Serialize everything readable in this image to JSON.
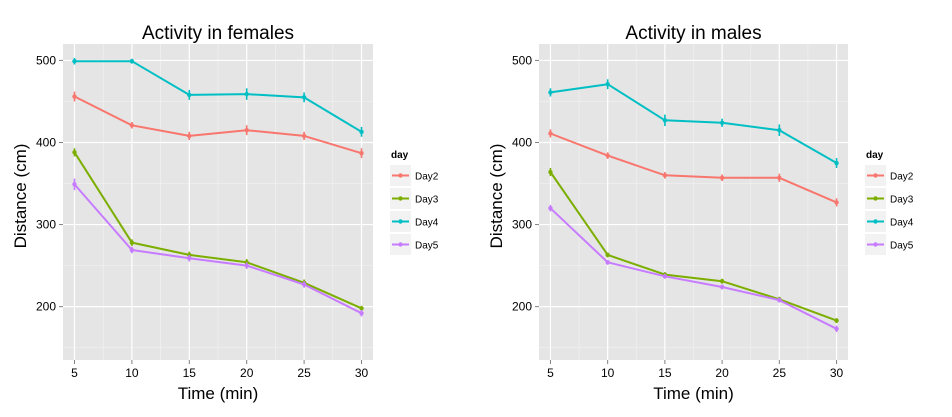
{
  "chart_data": [
    {
      "type": "line",
      "title": "Activity in females",
      "xlabel": "Time (min)",
      "ylabel": "Distance (cm)",
      "x": [
        5,
        10,
        15,
        20,
        25,
        30
      ],
      "xticks": [
        5,
        10,
        15,
        20,
        25,
        30
      ],
      "yticks": [
        200,
        300,
        400,
        500
      ],
      "xlim": [
        4.0,
        31.0
      ],
      "ylim": [
        135,
        520
      ],
      "grid": true,
      "legend_title": "day",
      "legend_position": "right",
      "error_bars": true,
      "series": [
        {
          "name": "Day2",
          "color": "#F8766D",
          "values": [
            456,
            421,
            408,
            415,
            408,
            387
          ],
          "errors": [
            6,
            4,
            5,
            6,
            5,
            6
          ]
        },
        {
          "name": "Day3",
          "color": "#7CAE00",
          "values": [
            388,
            278,
            263,
            254,
            229,
            198
          ],
          "errors": [
            5,
            4,
            4,
            4,
            4,
            3
          ]
        },
        {
          "name": "Day4",
          "color": "#00BFC4",
          "values": [
            499,
            499,
            458,
            459,
            455,
            413
          ],
          "errors": [
            4,
            3,
            6,
            7,
            6,
            6
          ]
        },
        {
          "name": "Day5",
          "color": "#C77CFF",
          "values": [
            349,
            269,
            259,
            250,
            227,
            192
          ],
          "errors": [
            7,
            4,
            4,
            4,
            4,
            4
          ]
        }
      ]
    },
    {
      "type": "line",
      "title": "Activity in males",
      "xlabel": "Time (min)",
      "ylabel": "Distance (cm)",
      "x": [
        5,
        10,
        15,
        20,
        25,
        30
      ],
      "xticks": [
        5,
        10,
        15,
        20,
        25,
        30
      ],
      "yticks": [
        200,
        300,
        400,
        500
      ],
      "xlim": [
        4.0,
        31.0
      ],
      "ylim": [
        135,
        520
      ],
      "grid": true,
      "legend_title": "day",
      "legend_position": "right",
      "error_bars": true,
      "series": [
        {
          "name": "Day2",
          "color": "#F8766D",
          "values": [
            411,
            384,
            360,
            357,
            357,
            327
          ],
          "errors": [
            5,
            4,
            4,
            4,
            5,
            5
          ]
        },
        {
          "name": "Day3",
          "color": "#7CAE00",
          "values": [
            364,
            263,
            239,
            231,
            209,
            183
          ],
          "errors": [
            5,
            3,
            3,
            3,
            3,
            3
          ]
        },
        {
          "name": "Day4",
          "color": "#00BFC4",
          "values": [
            461,
            471,
            427,
            424,
            415,
            375
          ],
          "errors": [
            5,
            6,
            7,
            5,
            7,
            6
          ]
        },
        {
          "name": "Day5",
          "color": "#C77CFF",
          "values": [
            320,
            254,
            237,
            224,
            208,
            173
          ],
          "errors": [
            4,
            3,
            3,
            3,
            3,
            4
          ]
        }
      ]
    }
  ]
}
